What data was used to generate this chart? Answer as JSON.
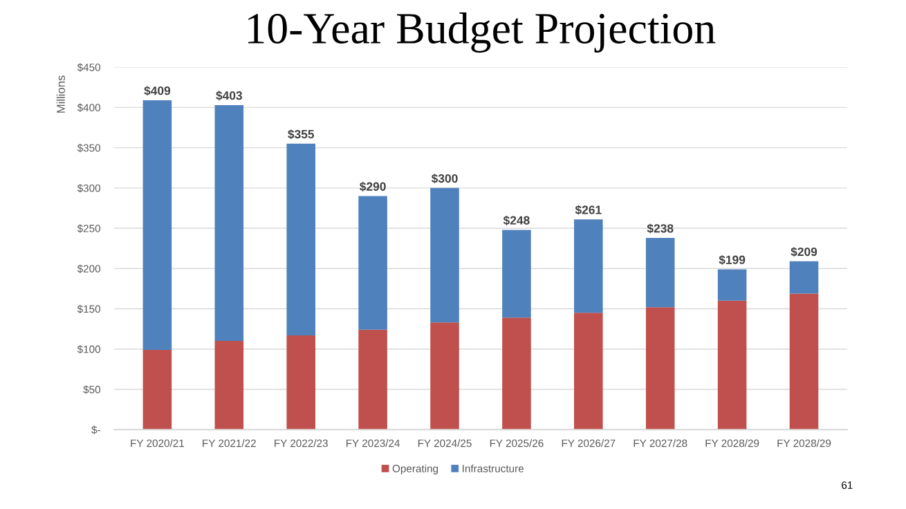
{
  "chart_data": {
    "type": "bar",
    "title": "10-Year Budget Projection",
    "ylabel": "Millions",
    "categories": [
      "FY 2020/21",
      "FY 2021/22",
      "FY 2022/23",
      "FY 2023/24",
      "FY 2024/25",
      "FY 2025/26",
      "FY 2026/27",
      "FY 2027/28",
      "FY 2028/29",
      "FY 2028/29"
    ],
    "series": [
      {
        "name": "Operating",
        "color": "#c0504d",
        "values": [
          99,
          110,
          117,
          124,
          133,
          139,
          145,
          152,
          160,
          169
        ]
      },
      {
        "name": "Infrastructure",
        "color": "#4f81bd",
        "values": [
          310,
          293,
          238,
          166,
          167,
          109,
          116,
          86,
          39,
          40
        ]
      }
    ],
    "stacked": true,
    "totals": [
      "$409",
      "$403",
      "$355",
      "$290",
      "$300",
      "$248",
      "$261",
      "$238",
      "$199",
      "$209"
    ],
    "ylim": [
      0,
      450
    ],
    "yticks": [
      {
        "value": 0,
        "label": "$-"
      },
      {
        "value": 50,
        "label": "$50"
      },
      {
        "value": 100,
        "label": "$100"
      },
      {
        "value": 150,
        "label": "$150"
      },
      {
        "value": 200,
        "label": "$200"
      },
      {
        "value": 250,
        "label": "$250"
      },
      {
        "value": 300,
        "label": "$300"
      },
      {
        "value": 350,
        "label": "$350"
      },
      {
        "value": 400,
        "label": "$400"
      },
      {
        "value": 450,
        "label": "$450"
      }
    ],
    "grid": "y",
    "legend": "bottom",
    "annotations": [
      "61"
    ]
  }
}
